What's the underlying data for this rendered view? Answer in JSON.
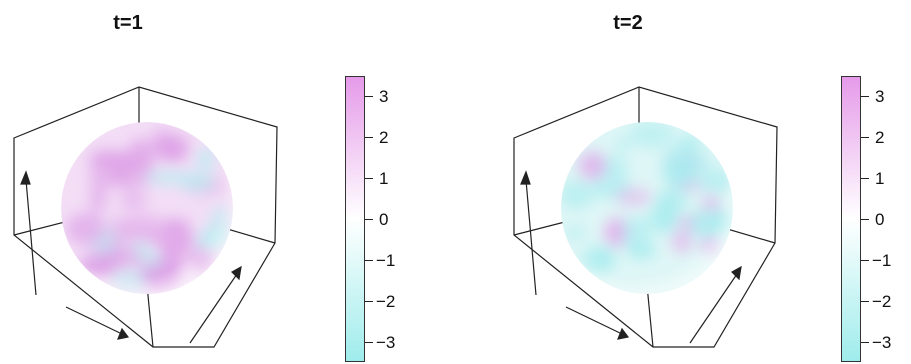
{
  "chart_data": [
    {
      "type": "heatmap",
      "title": "t=1",
      "colorbar": {
        "ticks": [
          "3",
          "2",
          "1",
          "0",
          "−1",
          "−2",
          "−3"
        ],
        "tick_values": [
          3,
          2,
          1,
          0,
          -1,
          -2,
          -3
        ],
        "range": [
          -3.5,
          3.5
        ],
        "colors": {
          "high": "#e59ae9",
          "mid": "#ffffff",
          "low": "#9fecec"
        }
      },
      "surface": "sphere",
      "dominant_sign": "positive"
    },
    {
      "type": "heatmap",
      "title": "t=2",
      "colorbar": {
        "ticks": [
          "3",
          "2",
          "1",
          "0",
          "−1",
          "−2",
          "−3"
        ],
        "tick_values": [
          3,
          2,
          1,
          0,
          -1,
          -2,
          -3
        ],
        "range": [
          -3.5,
          3.5
        ],
        "colors": {
          "high": "#e59ae9",
          "mid": "#ffffff",
          "low": "#9fecec"
        }
      },
      "surface": "sphere",
      "dominant_sign": "negative"
    }
  ]
}
